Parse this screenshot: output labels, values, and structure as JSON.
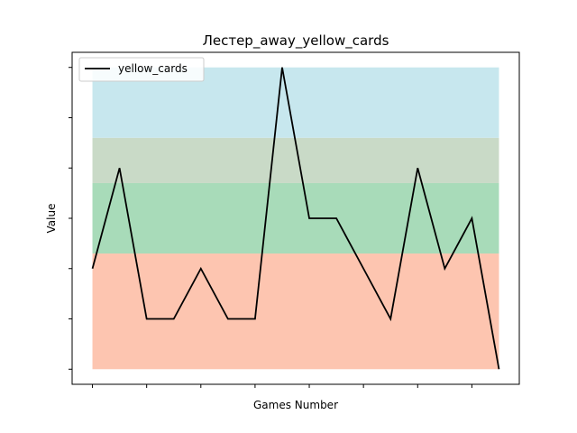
{
  "chart_data": {
    "type": "line",
    "title": "Лестер_away_yellow_cards",
    "xlabel": "Games Number",
    "ylabel": "Value",
    "x": [
      0,
      1,
      2,
      3,
      4,
      5,
      6,
      7,
      8,
      9,
      10,
      11,
      12,
      13,
      14,
      15
    ],
    "xlim": [
      -0.75,
      15.75
    ],
    "ylim": [
      -0.3,
      6.3
    ],
    "series": [
      {
        "name": "yellow_cards",
        "color": "#000000",
        "values": [
          2,
          4,
          1,
          1,
          2,
          1,
          1,
          6,
          3,
          3,
          2,
          1,
          4,
          2,
          3,
          0
        ]
      }
    ],
    "bands": [
      {
        "from": 0,
        "to": 2.3,
        "color": "#fdc5b0"
      },
      {
        "from": 2.3,
        "to": 3.7,
        "color": "#a8dbb9"
      },
      {
        "from": 3.7,
        "to": 4.6,
        "color": "#c9dac7"
      },
      {
        "from": 4.6,
        "to": 6.0,
        "color": "#c7e7ee"
      }
    ],
    "x_ticks": [
      0,
      2,
      4,
      6,
      8,
      10,
      12,
      14
    ],
    "y_ticks": [
      0,
      1,
      2,
      3,
      4,
      5,
      6
    ],
    "legend": {
      "position": "top-left"
    },
    "grid": false
  }
}
